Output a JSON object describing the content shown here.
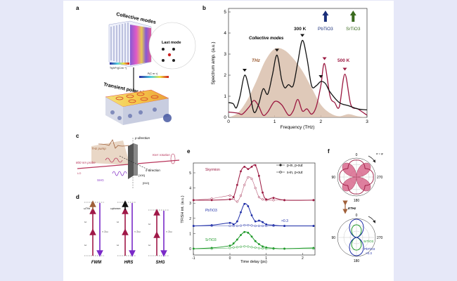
{
  "panels": {
    "a": {
      "label": "a",
      "collective_modes": "Collective modes",
      "last_mode": "Last mode",
      "transient_phase": "Transient polar phase",
      "colorbar_top": "Tr(∂²P²)(C²m⁻⁴)",
      "colorbar_mid": "P(C m⁻²)"
    },
    "b": {
      "label": "b"
    },
    "c": {
      "label": "c",
      "thz_pump": "THz pump",
      "probe": "800 nm probe",
      "lo": "LO",
      "shg": "SHG",
      "p_direction": "p-direction",
      "s_direction": "s-direction",
      "kerr": "Kerr rotation",
      "dir1": "[100]",
      "dir2": "[010]"
    },
    "d": {
      "label": "d",
      "omega": "ω",
      "two_omega": "≈ 2ω",
      "omega_thz": "ωTHz",
      "omega_phonon": "ωphonon",
      "names": [
        "FWM",
        "HRS",
        "SHG"
      ]
    },
    "e": {
      "label": "e"
    },
    "f": {
      "label": "f",
      "angle_labels": [
        "0",
        "90",
        "180",
        "270"
      ],
      "angle_note": "σ = φ",
      "ethz": "ETHz",
      "srtio3": "SrTiO3",
      "pbtio3": "PbTiO3",
      "scale": "×0.3"
    }
  },
  "chart_data": [
    {
      "type": "line",
      "panel": "b",
      "xlabel": "Frequency (THz)",
      "ylabel": "Spectrum amp. (a.u.)",
      "xlim": [
        0,
        3
      ],
      "ylim": [
        0,
        5
      ],
      "xticks": [
        "0",
        "1",
        "2",
        "3"
      ],
      "yticks": [
        "0",
        "1",
        "2",
        "3",
        "4",
        "5"
      ],
      "annotations": {
        "collective_modes": "Collective modes",
        "pbtio3": "PbTiO3",
        "srtio3": "SrTiO3",
        "pbtio3_freq": 2.1,
        "srtio3_freq": 2.7
      },
      "colors": {
        "300K": "#111111",
        "500K": "#9b1840",
        "THz": "#d9c0ad",
        "PbTiO3": "#1a2f7a",
        "SrTiO3": "#3a6a1e"
      },
      "series": [
        {
          "name": "THz",
          "x": [
            0,
            0.2,
            0.4,
            0.6,
            0.8,
            1.0,
            1.2,
            1.4,
            1.6,
            1.8,
            2.0,
            2.2,
            2.4,
            2.6,
            2.8,
            3.0
          ],
          "y": [
            0,
            0.2,
            0.8,
            1.7,
            2.7,
            3.25,
            3.2,
            2.8,
            2.2,
            1.4,
            0.6,
            0.2,
            0.05,
            0.15,
            0.05,
            0
          ]
        },
        {
          "name": "300 K",
          "x": [
            0,
            0.1,
            0.17,
            0.25,
            0.35,
            0.45,
            0.55,
            0.65,
            0.75,
            0.85,
            0.95,
            1.05,
            1.15,
            1.22,
            1.3,
            1.4,
            1.5,
            1.6,
            1.7,
            1.8,
            1.9,
            2.0,
            2.1,
            2.2,
            2.4,
            2.6,
            2.8,
            3.0
          ],
          "y": [
            0.7,
            0.65,
            0.45,
            1.0,
            2.0,
            1.3,
            0.25,
            0.6,
            1.35,
            1.1,
            2.0,
            2.95,
            1.8,
            1.4,
            1.55,
            1.5,
            2.6,
            3.65,
            2.8,
            1.5,
            1.5,
            1.7,
            1.6,
            1.2,
            0.7,
            0.55,
            0.4,
            0.35
          ],
          "peaks": [
            0.35,
            1.05,
            1.6,
            2.0
          ]
        },
        {
          "name": "500 K",
          "x": [
            0,
            0.2,
            0.3,
            0.45,
            0.55,
            0.65,
            0.75,
            0.85,
            1.0,
            1.15,
            1.3,
            1.4,
            1.5,
            1.6,
            1.7,
            1.8,
            1.9,
            2.0,
            2.08,
            2.2,
            2.3,
            2.4,
            2.52,
            2.65,
            2.8,
            3.0
          ],
          "y": [
            0.25,
            0.2,
            0.15,
            0.5,
            0.8,
            0.55,
            0.1,
            0.25,
            0.75,
            0.6,
            0.1,
            0.3,
            0.85,
            0.3,
            0.4,
            0.15,
            0.5,
            1.5,
            2.55,
            1.0,
            0.7,
            0.5,
            2.05,
            0.6,
            0.4,
            0.1
          ],
          "peaks": [
            2.08,
            2.52
          ]
        }
      ]
    },
    {
      "type": "scatter",
      "panel": "e",
      "xlabel": "Time delay (ps)",
      "ylabel": "TFISH int. (a.u.)",
      "xlim": [
        -1,
        2.3
      ],
      "ylim": [
        -0.3,
        5.7
      ],
      "xticks": [
        "-1",
        "0",
        "1",
        "2"
      ],
      "yticks": [
        "0",
        "1",
        "2",
        "3",
        "4",
        "5"
      ],
      "legend": [
        "p-in, p-out",
        "s-in, p-out"
      ],
      "legend_position": "top-right",
      "annotation": "×0.3",
      "x": [
        -1,
        -0.5,
        0,
        0.1,
        0.2,
        0.3,
        0.4,
        0.5,
        0.6,
        0.7,
        0.8,
        0.9,
        1.0,
        1.2,
        1.5,
        2.3
      ],
      "series": [
        {
          "name": "Skyrmion",
          "color": "#9b1840",
          "p_in": [
            3.2,
            3.2,
            3.25,
            3.4,
            4.2,
            5.1,
            5.4,
            5.25,
            5.4,
            5.5,
            4.8,
            3.7,
            3.25,
            3.35,
            3.2,
            3.2
          ],
          "s_in": [
            3.2,
            3.3,
            3.5,
            3.3,
            3.1,
            3.5,
            4.2,
            4.7,
            4.6,
            4.0,
            3.4,
            3.25,
            3.2,
            3.2,
            3.2,
            3.2
          ]
        },
        {
          "name": "PbTiO3",
          "color": "#1f2fa8",
          "p_in": [
            1.5,
            1.55,
            1.7,
            1.6,
            1.8,
            2.4,
            2.95,
            2.8,
            2.2,
            1.8,
            1.85,
            1.75,
            1.6,
            1.55,
            1.5,
            1.5
          ],
          "s_in": [
            1.5,
            1.5,
            1.5,
            1.5,
            1.5,
            1.52,
            1.55,
            1.55,
            1.53,
            1.5,
            1.5,
            1.5,
            1.5,
            1.5,
            1.5,
            1.5
          ]
        },
        {
          "name": "SrTiO3",
          "color": "#1f9a2a",
          "p_in": [
            0,
            0.05,
            0.2,
            0.35,
            0.6,
            0.9,
            1.1,
            1.05,
            0.8,
            0.5,
            0.3,
            0.15,
            0.08,
            0.03,
            0,
            0.05
          ],
          "s_in": [
            0,
            0,
            0.05,
            0.08,
            0.1,
            0.13,
            0.15,
            0.14,
            0.1,
            0.07,
            0.04,
            0.02,
            0,
            0,
            0,
            0
          ]
        }
      ]
    }
  ]
}
